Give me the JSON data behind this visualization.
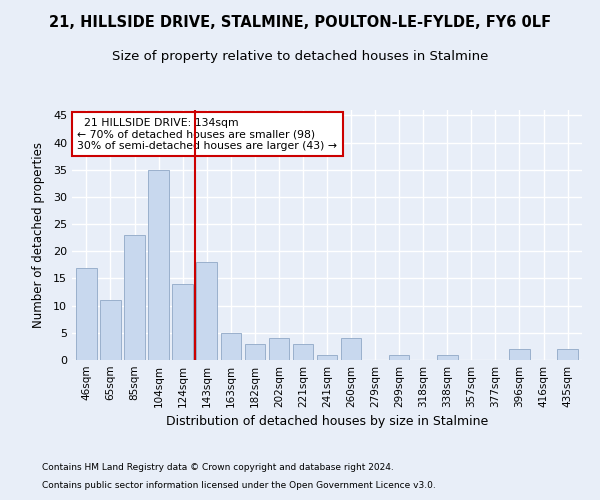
{
  "title1": "21, HILLSIDE DRIVE, STALMINE, POULTON-LE-FYLDE, FY6 0LF",
  "title2": "Size of property relative to detached houses in Stalmine",
  "xlabel": "Distribution of detached houses by size in Stalmine",
  "ylabel": "Number of detached properties",
  "categories": [
    "46sqm",
    "65sqm",
    "85sqm",
    "104sqm",
    "124sqm",
    "143sqm",
    "163sqm",
    "182sqm",
    "202sqm",
    "221sqm",
    "241sqm",
    "260sqm",
    "279sqm",
    "299sqm",
    "318sqm",
    "338sqm",
    "357sqm",
    "377sqm",
    "396sqm",
    "416sqm",
    "435sqm"
  ],
  "values": [
    17,
    11,
    23,
    35,
    14,
    18,
    5,
    3,
    4,
    3,
    1,
    4,
    0,
    1,
    0,
    1,
    0,
    0,
    2,
    0,
    2
  ],
  "bar_color": "#c8d8ee",
  "bar_edge_color": "#9ab0cc",
  "vline_x": 4.5,
  "vline_color": "#cc0000",
  "annotation_text": "  21 HILLSIDE DRIVE: 134sqm\n← 70% of detached houses are smaller (98)\n30% of semi-detached houses are larger (43) →",
  "annotation_box_color": "#ffffff",
  "annotation_box_edge": "#cc0000",
  "ylim": [
    0,
    46
  ],
  "yticks": [
    0,
    5,
    10,
    15,
    20,
    25,
    30,
    35,
    40,
    45
  ],
  "footer1": "Contains HM Land Registry data © Crown copyright and database right 2024.",
  "footer2": "Contains public sector information licensed under the Open Government Licence v3.0.",
  "bg_color": "#e8eef8",
  "plot_bg_color": "#e8eef8",
  "grid_color": "#ffffff",
  "title1_fontsize": 10.5,
  "title2_fontsize": 9.5
}
